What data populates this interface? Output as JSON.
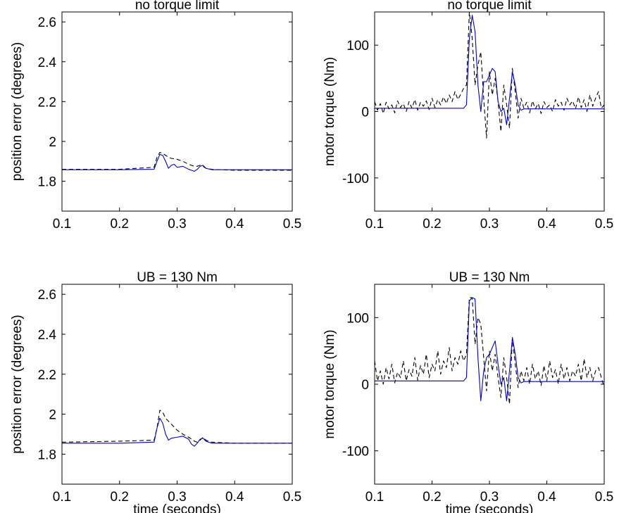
{
  "figure": {
    "background": "#ffffff"
  },
  "chart_data": [
    {
      "type": "line",
      "title": "no torque limit",
      "xlabel": "",
      "ylabel": "position error (degrees)",
      "xlim": [
        0.1,
        0.5
      ],
      "ylim": [
        1.65,
        2.65
      ],
      "xticks": [
        0.1,
        0.2,
        0.3,
        0.4,
        0.5
      ],
      "xtick_labels": [
        "0.1",
        "0.2",
        "0.3",
        "0.4",
        "0.5"
      ],
      "yticks": [
        1.8,
        2.0,
        2.2,
        2.4,
        2.6
      ],
      "ytick_labels": [
        "1.8",
        "2",
        "2.2",
        "2.4",
        "2.6"
      ],
      "grid": false,
      "series": [
        {
          "color": "#000000",
          "dash": "dashed",
          "x": [
            0.1,
            0.2,
            0.26,
            0.265,
            0.27,
            0.275,
            0.28,
            0.285,
            0.29,
            0.3,
            0.31,
            0.32,
            0.33,
            0.335,
            0.34,
            0.345,
            0.35,
            0.36,
            0.4,
            0.45,
            0.5
          ],
          "y": [
            1.86,
            1.86,
            1.87,
            1.92,
            1.945,
            1.94,
            1.93,
            1.92,
            1.915,
            1.91,
            1.9,
            1.885,
            1.875,
            1.875,
            1.88,
            1.875,
            1.865,
            1.86,
            1.855,
            1.855,
            1.855
          ]
        },
        {
          "color": "#0000cc",
          "dash": "solid",
          "x": [
            0.1,
            0.2,
            0.26,
            0.265,
            0.27,
            0.275,
            0.28,
            0.285,
            0.29,
            0.295,
            0.3,
            0.31,
            0.32,
            0.325,
            0.33,
            0.335,
            0.34,
            0.345,
            0.35,
            0.36,
            0.4,
            0.45,
            0.5
          ],
          "y": [
            1.858,
            1.858,
            1.86,
            1.9,
            1.935,
            1.93,
            1.9,
            1.865,
            1.88,
            1.885,
            1.87,
            1.875,
            1.86,
            1.855,
            1.85,
            1.86,
            1.875,
            1.88,
            1.865,
            1.858,
            1.858,
            1.858,
            1.858
          ]
        }
      ]
    },
    {
      "type": "line",
      "title": "no torque limit",
      "xlabel": "",
      "ylabel": "motor torque (Nm)",
      "xlim": [
        0.1,
        0.5
      ],
      "ylim": [
        -150,
        150
      ],
      "xticks": [
        0.1,
        0.2,
        0.3,
        0.4,
        0.5
      ],
      "xtick_labels": [
        "0.1",
        "0.2",
        "0.3",
        "0.4",
        "0.5"
      ],
      "yticks": [
        -100,
        0,
        100
      ],
      "ytick_labels": [
        "-100",
        "0",
        "100"
      ],
      "grid": false,
      "series": [
        {
          "color": "#000000",
          "dash": "dashed",
          "x": [
            0.1,
            0.105,
            0.11,
            0.115,
            0.12,
            0.125,
            0.13,
            0.135,
            0.14,
            0.145,
            0.15,
            0.155,
            0.16,
            0.165,
            0.17,
            0.175,
            0.18,
            0.185,
            0.19,
            0.195,
            0.2,
            0.205,
            0.21,
            0.215,
            0.22,
            0.225,
            0.23,
            0.235,
            0.24,
            0.245,
            0.25,
            0.255,
            0.26,
            0.265,
            0.27,
            0.275,
            0.28,
            0.285,
            0.29,
            0.295,
            0.3,
            0.305,
            0.31,
            0.315,
            0.32,
            0.325,
            0.33,
            0.335,
            0.34,
            0.345,
            0.35,
            0.355,
            0.36,
            0.365,
            0.37,
            0.375,
            0.38,
            0.385,
            0.39,
            0.395,
            0.4,
            0.405,
            0.41,
            0.415,
            0.42,
            0.425,
            0.43,
            0.435,
            0.44,
            0.445,
            0.45,
            0.455,
            0.46,
            0.465,
            0.47,
            0.475,
            0.48,
            0.485,
            0.49,
            0.495,
            0.5
          ],
          "y": [
            15,
            2,
            12,
            -3,
            14,
            4,
            10,
            -2,
            16,
            6,
            12,
            0,
            15,
            5,
            18,
            2,
            14,
            8,
            16,
            3,
            20,
            6,
            18,
            10,
            22,
            12,
            25,
            15,
            30,
            18,
            26,
            35,
            40,
            150,
            110,
            40,
            70,
            90,
            20,
            -40,
            60,
            25,
            50,
            15,
            -30,
            40,
            10,
            -25,
            65,
            30,
            -10,
            20,
            5,
            14,
            -2,
            16,
            4,
            12,
            -3,
            15,
            6,
            10,
            0,
            18,
            8,
            14,
            2,
            20,
            10,
            16,
            4,
            22,
            6,
            18,
            0,
            25,
            8,
            20,
            30,
            5,
            10
          ]
        },
        {
          "color": "#0000cc",
          "dash": "solid",
          "x": [
            0.1,
            0.15,
            0.2,
            0.255,
            0.26,
            0.265,
            0.27,
            0.275,
            0.28,
            0.285,
            0.29,
            0.295,
            0.3,
            0.305,
            0.31,
            0.315,
            0.32,
            0.325,
            0.33,
            0.335,
            0.34,
            0.345,
            0.35,
            0.355,
            0.36,
            0.4,
            0.45,
            0.5
          ],
          "y": [
            5,
            5,
            5,
            5,
            10,
            110,
            145,
            120,
            40,
            0,
            45,
            45,
            55,
            65,
            60,
            15,
            0,
            5,
            -20,
            20,
            60,
            40,
            10,
            2,
            4,
            4,
            4,
            4
          ]
        }
      ]
    },
    {
      "type": "line",
      "title": "UB = 130 Nm",
      "xlabel": "time (seconds)",
      "ylabel": "position error (degrees)",
      "xlim": [
        0.1,
        0.5
      ],
      "ylim": [
        1.65,
        2.65
      ],
      "xticks": [
        0.1,
        0.2,
        0.3,
        0.4,
        0.5
      ],
      "xtick_labels": [
        "0.1",
        "0.2",
        "0.3",
        "0.4",
        "0.5"
      ],
      "yticks": [
        1.8,
        2.0,
        2.2,
        2.4,
        2.6
      ],
      "ytick_labels": [
        "1.8",
        "2",
        "2.2",
        "2.4",
        "2.6"
      ],
      "grid": false,
      "series": [
        {
          "color": "#000000",
          "dash": "dashed",
          "x": [
            0.1,
            0.2,
            0.26,
            0.265,
            0.27,
            0.275,
            0.28,
            0.29,
            0.3,
            0.31,
            0.32,
            0.33,
            0.335,
            0.34,
            0.345,
            0.35,
            0.36,
            0.4,
            0.45,
            0.5
          ],
          "y": [
            1.86,
            1.865,
            1.87,
            1.93,
            2.02,
            2.01,
            1.98,
            1.95,
            1.92,
            1.9,
            1.885,
            1.865,
            1.86,
            1.87,
            1.885,
            1.87,
            1.86,
            1.855,
            1.855,
            1.855
          ]
        },
        {
          "color": "#0000cc",
          "dash": "solid",
          "x": [
            0.1,
            0.2,
            0.26,
            0.265,
            0.27,
            0.275,
            0.28,
            0.285,
            0.29,
            0.3,
            0.31,
            0.32,
            0.325,
            0.33,
            0.335,
            0.34,
            0.345,
            0.35,
            0.36,
            0.4,
            0.45,
            0.5
          ],
          "y": [
            1.855,
            1.855,
            1.86,
            1.93,
            1.98,
            1.955,
            1.9,
            1.87,
            1.88,
            1.885,
            1.89,
            1.875,
            1.85,
            1.84,
            1.855,
            1.875,
            1.88,
            1.865,
            1.855,
            1.855,
            1.855,
            1.855
          ]
        }
      ]
    },
    {
      "type": "line",
      "title": "UB = 130 Nm",
      "xlabel": "time (seconds)",
      "ylabel": "motor torque (Nm)",
      "xlim": [
        0.1,
        0.5
      ],
      "ylim": [
        -150,
        150
      ],
      "xticks": [
        0.1,
        0.2,
        0.3,
        0.4,
        0.5
      ],
      "xtick_labels": [
        "0.1",
        "0.2",
        "0.3",
        "0.4",
        "0.5"
      ],
      "yticks": [
        -100,
        0,
        100
      ],
      "ytick_labels": [
        "-100",
        "0",
        "100"
      ],
      "grid": false,
      "series": [
        {
          "color": "#000000",
          "dash": "dashed",
          "x": [
            0.1,
            0.105,
            0.11,
            0.115,
            0.12,
            0.125,
            0.13,
            0.135,
            0.14,
            0.145,
            0.15,
            0.155,
            0.16,
            0.165,
            0.17,
            0.175,
            0.18,
            0.185,
            0.19,
            0.195,
            0.2,
            0.205,
            0.21,
            0.215,
            0.22,
            0.225,
            0.23,
            0.235,
            0.24,
            0.245,
            0.25,
            0.255,
            0.26,
            0.265,
            0.27,
            0.275,
            0.28,
            0.285,
            0.29,
            0.295,
            0.3,
            0.305,
            0.31,
            0.315,
            0.32,
            0.325,
            0.33,
            0.335,
            0.34,
            0.345,
            0.35,
            0.355,
            0.36,
            0.365,
            0.37,
            0.375,
            0.38,
            0.385,
            0.39,
            0.395,
            0.4,
            0.405,
            0.41,
            0.415,
            0.42,
            0.425,
            0.43,
            0.435,
            0.44,
            0.445,
            0.45,
            0.455,
            0.46,
            0.465,
            0.47,
            0.475,
            0.48,
            0.485,
            0.49,
            0.495,
            0.5
          ],
          "y": [
            35,
            5,
            20,
            0,
            25,
            8,
            30,
            2,
            18,
            10,
            35,
            5,
            22,
            12,
            40,
            6,
            28,
            15,
            45,
            10,
            30,
            20,
            50,
            15,
            35,
            25,
            55,
            20,
            40,
            30,
            50,
            35,
            45,
            130,
            130,
            60,
            100,
            90,
            40,
            -10,
            50,
            20,
            45,
            10,
            -20,
            40,
            10,
            -30,
            70,
            30,
            -5,
            20,
            5,
            25,
            0,
            30,
            8,
            20,
            -2,
            28,
            5,
            35,
            10,
            22,
            0,
            30,
            8,
            25,
            5,
            20,
            12,
            30,
            5,
            38,
            10,
            25,
            5,
            20,
            25,
            10,
            -5
          ]
        },
        {
          "color": "#0000cc",
          "dash": "solid",
          "x": [
            0.1,
            0.15,
            0.2,
            0.255,
            0.26,
            0.265,
            0.27,
            0.275,
            0.28,
            0.285,
            0.29,
            0.295,
            0.3,
            0.305,
            0.31,
            0.315,
            0.32,
            0.325,
            0.33,
            0.335,
            0.34,
            0.345,
            0.35,
            0.355,
            0.36,
            0.4,
            0.45,
            0.5
          ],
          "y": [
            5,
            5,
            5,
            5,
            10,
            125,
            130,
            128,
            40,
            -25,
            20,
            40,
            45,
            55,
            65,
            30,
            0,
            10,
            -25,
            20,
            70,
            45,
            10,
            2,
            4,
            4,
            4,
            4
          ]
        }
      ]
    }
  ]
}
